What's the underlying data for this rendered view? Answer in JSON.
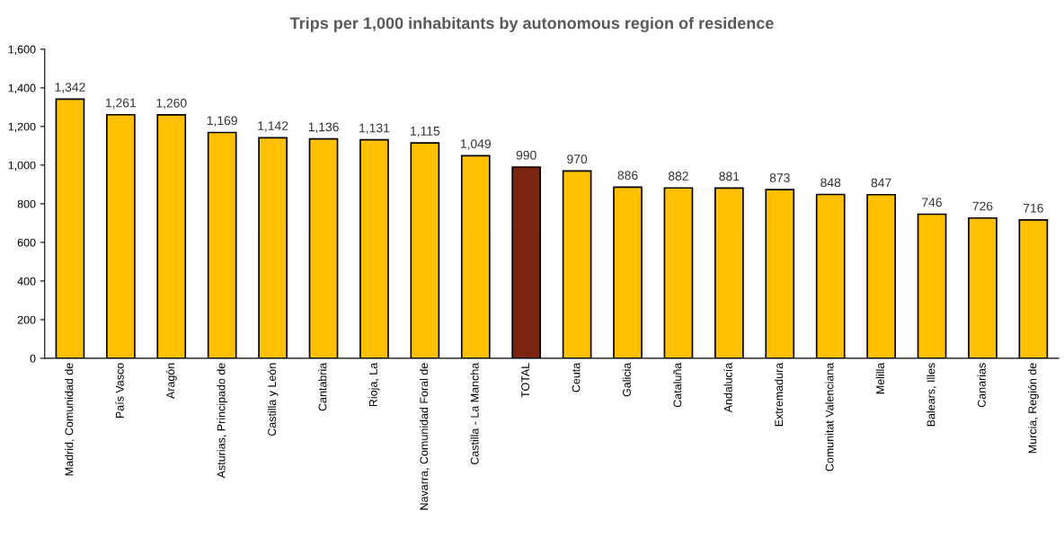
{
  "chart_data": {
    "type": "bar",
    "title": "Trips per 1,000 inhabitants by autonomous region of residence",
    "categories": [
      "Madrid, Comunidad de",
      "País Vasco",
      "Aragón",
      "Asturias, Principado de",
      "Castilla y León",
      "Cantabria",
      "Rioja, La",
      "Navarra, Comunidad Foral de",
      "Castilla - La Mancha",
      "TOTAL",
      "Ceuta",
      "Galicia",
      "Cataluña",
      "Andalucía",
      "Extremadura",
      "Comunitat Valenciana",
      "Melilla",
      "Balears, Illes",
      "Canarias",
      "Murcia, Región de"
    ],
    "values": [
      1342,
      1261,
      1260,
      1169,
      1142,
      1136,
      1131,
      1115,
      1049,
      990,
      970,
      886,
      882,
      881,
      873,
      848,
      847,
      746,
      726,
      716
    ],
    "value_labels": [
      "1,342",
      "1,261",
      "1,260",
      "1,169",
      "1,142",
      "1,136",
      "1,131",
      "1,115",
      "1,049",
      "990",
      "970",
      "886",
      "882",
      "881",
      "873",
      "848",
      "847",
      "746",
      "726",
      "716"
    ],
    "colors": [
      "#ffc000",
      "#ffc000",
      "#ffc000",
      "#ffc000",
      "#ffc000",
      "#ffc000",
      "#ffc000",
      "#ffc000",
      "#ffc000",
      "#7b2412",
      "#ffc000",
      "#ffc000",
      "#ffc000",
      "#ffc000",
      "#ffc000",
      "#ffc000",
      "#ffc000",
      "#ffc000",
      "#ffc000",
      "#ffc000"
    ],
    "ylim": [
      0,
      1600
    ],
    "yticks": [
      0,
      200,
      400,
      600,
      800,
      {
        "value": 1000,
        "label": "1,000"
      },
      {
        "value": 1200,
        "label": "1,200"
      },
      {
        "value": 1400,
        "label": "1,400"
      },
      {
        "value": 1600,
        "label": "1,600"
      }
    ],
    "grid": false
  }
}
